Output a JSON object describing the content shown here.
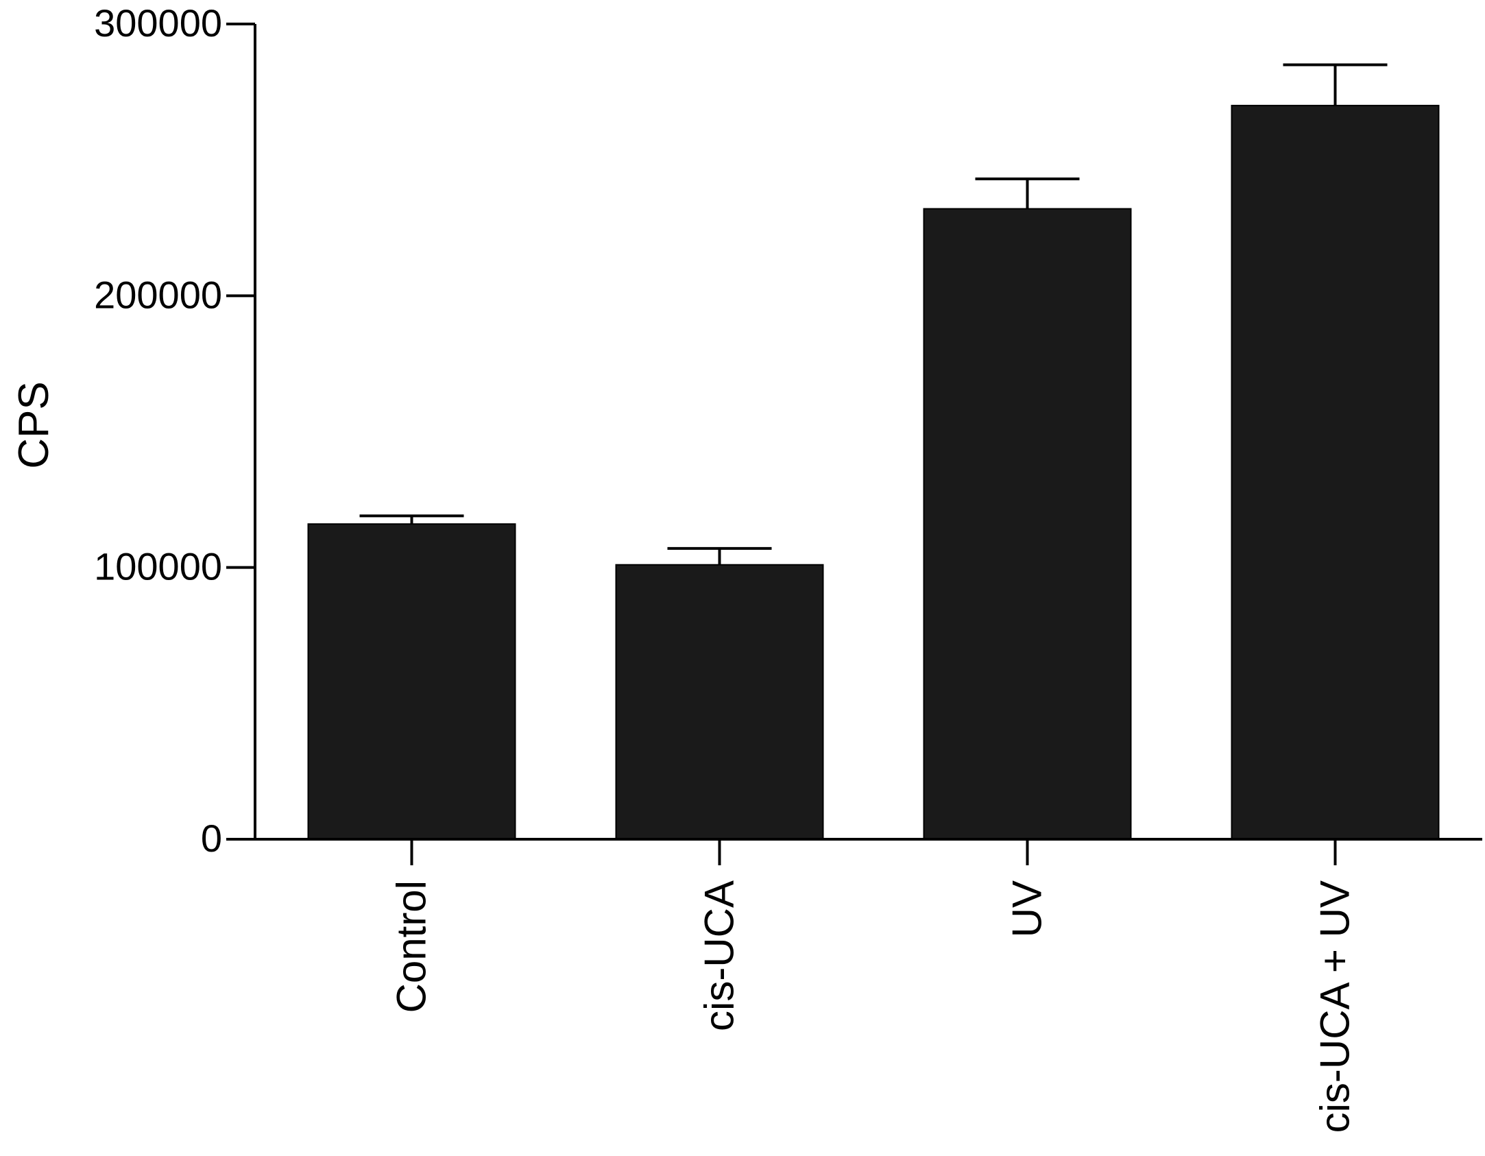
{
  "chart_data": {
    "type": "bar",
    "title": "",
    "xlabel": "",
    "ylabel": "CPS",
    "categories": [
      "Control",
      "cis-UCA",
      "UV",
      "cis-UCA + UV"
    ],
    "values": [
      116000,
      101000,
      232000,
      270000
    ],
    "error": [
      3000,
      6000,
      11000,
      15000
    ],
    "ylim": [
      0,
      300000
    ],
    "yticks": [
      0,
      100000,
      200000,
      300000
    ],
    "ytick_labels": [
      "0",
      "100000",
      "200000",
      "300000"
    ],
    "grid": false,
    "legend": "none",
    "colors": {
      "bar": "#1a1a1a",
      "axis": "#000000",
      "background": "#ffffff"
    }
  }
}
